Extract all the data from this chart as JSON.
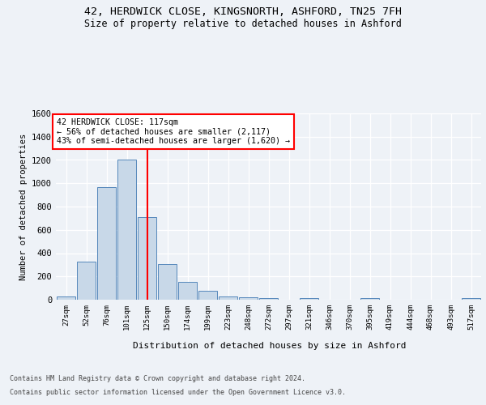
{
  "title_line1": "42, HERDWICK CLOSE, KINGSNORTH, ASHFORD, TN25 7FH",
  "title_line2": "Size of property relative to detached houses in Ashford",
  "xlabel": "Distribution of detached houses by size in Ashford",
  "ylabel": "Number of detached properties",
  "categories": [
    "27sqm",
    "52sqm",
    "76sqm",
    "101sqm",
    "125sqm",
    "150sqm",
    "174sqm",
    "199sqm",
    "223sqm",
    "248sqm",
    "272sqm",
    "297sqm",
    "321sqm",
    "346sqm",
    "370sqm",
    "395sqm",
    "419sqm",
    "444sqm",
    "468sqm",
    "493sqm",
    "517sqm"
  ],
  "bar_values": [
    30,
    325,
    970,
    1200,
    710,
    305,
    155,
    80,
    30,
    20,
    15,
    0,
    15,
    0,
    0,
    12,
    0,
    0,
    0,
    0,
    12
  ],
  "bar_color": "#c8d8e8",
  "bar_edge_color": "#5588bb",
  "vline_x_index": 4,
  "vline_color": "red",
  "annotation_text": "42 HERDWICK CLOSE: 117sqm\n← 56% of detached houses are smaller (2,117)\n43% of semi-detached houses are larger (1,620) →",
  "annotation_box_color": "white",
  "annotation_box_edge_color": "red",
  "ylim": [
    0,
    1600
  ],
  "yticks": [
    0,
    200,
    400,
    600,
    800,
    1000,
    1200,
    1400,
    1600
  ],
  "footer_line1": "Contains HM Land Registry data © Crown copyright and database right 2024.",
  "footer_line2": "Contains public sector information licensed under the Open Government Licence v3.0.",
  "bg_color": "#eef2f7",
  "plot_bg_color": "#eef2f7"
}
